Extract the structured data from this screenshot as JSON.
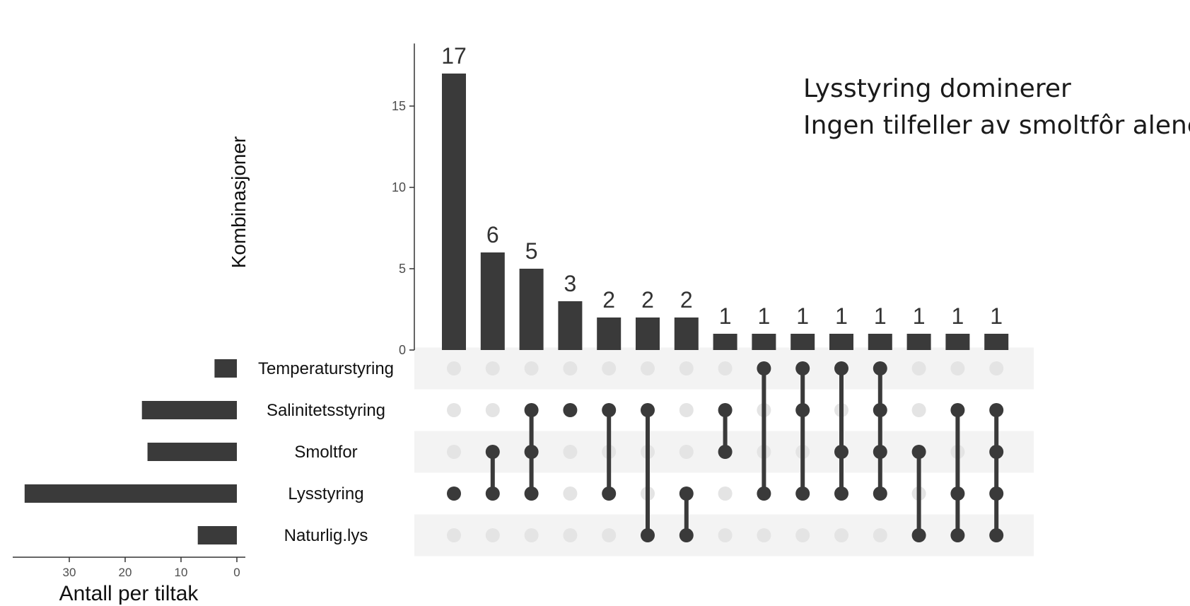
{
  "annotation": {
    "line1": "Lysstyring dominerer",
    "line2": "Ingen tilfeller av smoltfôr alene"
  },
  "chart_data": {
    "type": "bar",
    "subtype": "upset",
    "grid": false,
    "intersection_axis": {
      "ylabel": "Kombinasjoner",
      "ylim": [
        0,
        18.5
      ],
      "ticks": [
        0,
        5,
        10,
        15
      ]
    },
    "set_size_axis": {
      "xlabel": "Antall per tiltak",
      "xlim": [
        0,
        40
      ],
      "ticks": [
        30,
        20,
        10,
        0
      ],
      "reversed": true
    },
    "sets": [
      {
        "name": "Temperaturstyring",
        "size": 4
      },
      {
        "name": "Salinitetsstyring",
        "size": 17
      },
      {
        "name": "Smoltfor",
        "size": 16
      },
      {
        "name": "Lysstyring",
        "size": 38
      },
      {
        "name": "Naturlig.lys",
        "size": 7
      }
    ],
    "intersections": [
      {
        "count": 17,
        "members": [
          "Lysstyring"
        ]
      },
      {
        "count": 6,
        "members": [
          "Smoltfor",
          "Lysstyring"
        ]
      },
      {
        "count": 5,
        "members": [
          "Salinitetsstyring",
          "Smoltfor",
          "Lysstyring"
        ]
      },
      {
        "count": 3,
        "members": [
          "Salinitetsstyring"
        ]
      },
      {
        "count": 2,
        "members": [
          "Salinitetsstyring",
          "Lysstyring"
        ]
      },
      {
        "count": 2,
        "members": [
          "Salinitetsstyring",
          "Naturlig.lys"
        ]
      },
      {
        "count": 2,
        "members": [
          "Lysstyring",
          "Naturlig.lys"
        ]
      },
      {
        "count": 1,
        "members": [
          "Salinitetsstyring",
          "Smoltfor"
        ]
      },
      {
        "count": 1,
        "members": [
          "Temperaturstyring",
          "Lysstyring"
        ]
      },
      {
        "count": 1,
        "members": [
          "Temperaturstyring",
          "Salinitetsstyring",
          "Lysstyring"
        ]
      },
      {
        "count": 1,
        "members": [
          "Temperaturstyring",
          "Smoltfor",
          "Lysstyring"
        ]
      },
      {
        "count": 1,
        "members": [
          "Temperaturstyring",
          "Salinitetsstyring",
          "Smoltfor",
          "Lysstyring"
        ]
      },
      {
        "count": 1,
        "members": [
          "Smoltfor",
          "Naturlig.lys"
        ]
      },
      {
        "count": 1,
        "members": [
          "Salinitetsstyring",
          "Lysstyring",
          "Naturlig.lys"
        ]
      },
      {
        "count": 1,
        "members": [
          "Salinitetsstyring",
          "Smoltfor",
          "Lysstyring",
          "Naturlig.lys"
        ]
      }
    ],
    "colors": {
      "bar": "#3a3a3a",
      "dot_active": "#3a3a3a",
      "dot_inactive": "#e4e4e4",
      "row_stripe": "#f3f3f3",
      "axis": "#333333",
      "tick_label": "#4d4d4d"
    }
  }
}
